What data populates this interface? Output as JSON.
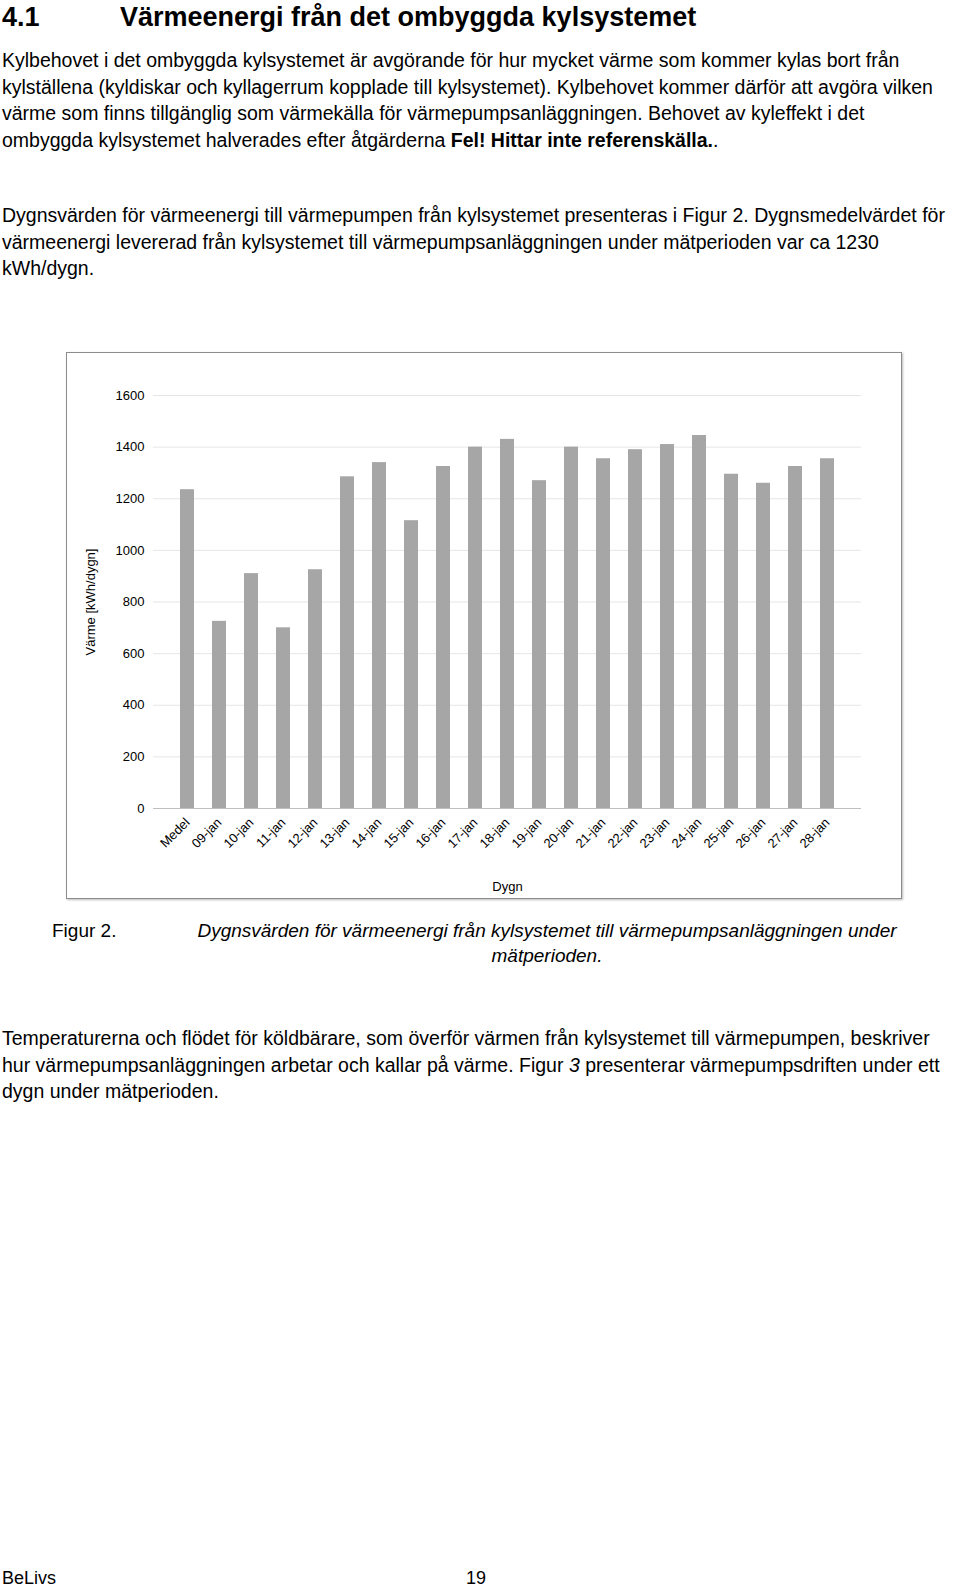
{
  "heading": {
    "number": "4.1",
    "title": "Värmeenergi från det ombyggda kylsystemet"
  },
  "paragraphs_before": [
    {
      "runs": [
        {
          "text": "Kylbehovet i det ombyggda kylsystemet är avgörande för hur mycket värme som kommer kylas bort från kylställena (kyldiskar och kyllagerrum kopplade till kylsystemet). Kylbehovet kommer därför att avgöra vilken värme som finns tillgänglig som värmekälla för värmepumpsanläggningen. Behovet av kyleffekt i det ombyggda kylsystemet halverades efter åtgärderna "
        },
        {
          "text": "Fel! Hittar inte referenskälla.",
          "bold": true
        },
        {
          "text": "."
        }
      ]
    },
    {
      "runs": [
        {
          "text": "Dygnsvärden för värmeenergi till värmepumpen från kylsystemet presenteras i Figur 2. Dygnsmedelvärdet för värmeenergi levererad från kylsystemet till värmepumpsanläggningen under mätperioden var ca 1230 kWh/dygn."
        }
      ]
    }
  ],
  "chart_data": {
    "type": "bar",
    "x_label": "Dygn",
    "y_label": "Värme [kWh/dygn]",
    "categories": [
      "Medel",
      "09-jan",
      "10-jan",
      "11-jan",
      "12-jan",
      "13-jan",
      "14-jan",
      "15-jan",
      "16-jan",
      "17-jan",
      "18-jan",
      "19-jan",
      "20-jan",
      "21-jan",
      "22-jan",
      "23-jan",
      "24-jan",
      "25-jan",
      "26-jan",
      "27-jan",
      "28-jan"
    ],
    "values": [
      1235,
      725,
      910,
      700,
      925,
      1285,
      1340,
      1115,
      1325,
      1400,
      1430,
      1270,
      1400,
      1355,
      1390,
      1410,
      1445,
      1295,
      1260,
      1325,
      1355
    ],
    "color": "#a6a6a6",
    "ylim": [
      0,
      1600
    ],
    "yticks": [
      0,
      200,
      400,
      600,
      800,
      1000,
      1200,
      1400,
      1600
    ],
    "grid": true
  },
  "caption": {
    "label": "Figur 2.",
    "text": "Dygnsvärden för värmeenergi från kylsystemet till värmepumpsanläggningen under mätperioden."
  },
  "paragraphs_after": [
    {
      "runs": [
        {
          "text": "Temperaturerna och flödet för köldbärare, som överför värmen från kylsystemet till värmepumpen, beskriver hur värmepumpsanläggningen arbetar och kallar på värme. Figur "
        },
        {
          "text": "3",
          "italic": true
        },
        {
          "text": " presenterar värmepumpsdriften under ett dygn under mätperioden."
        }
      ]
    }
  ],
  "footer": {
    "left": "BeLivs",
    "page": "19"
  }
}
